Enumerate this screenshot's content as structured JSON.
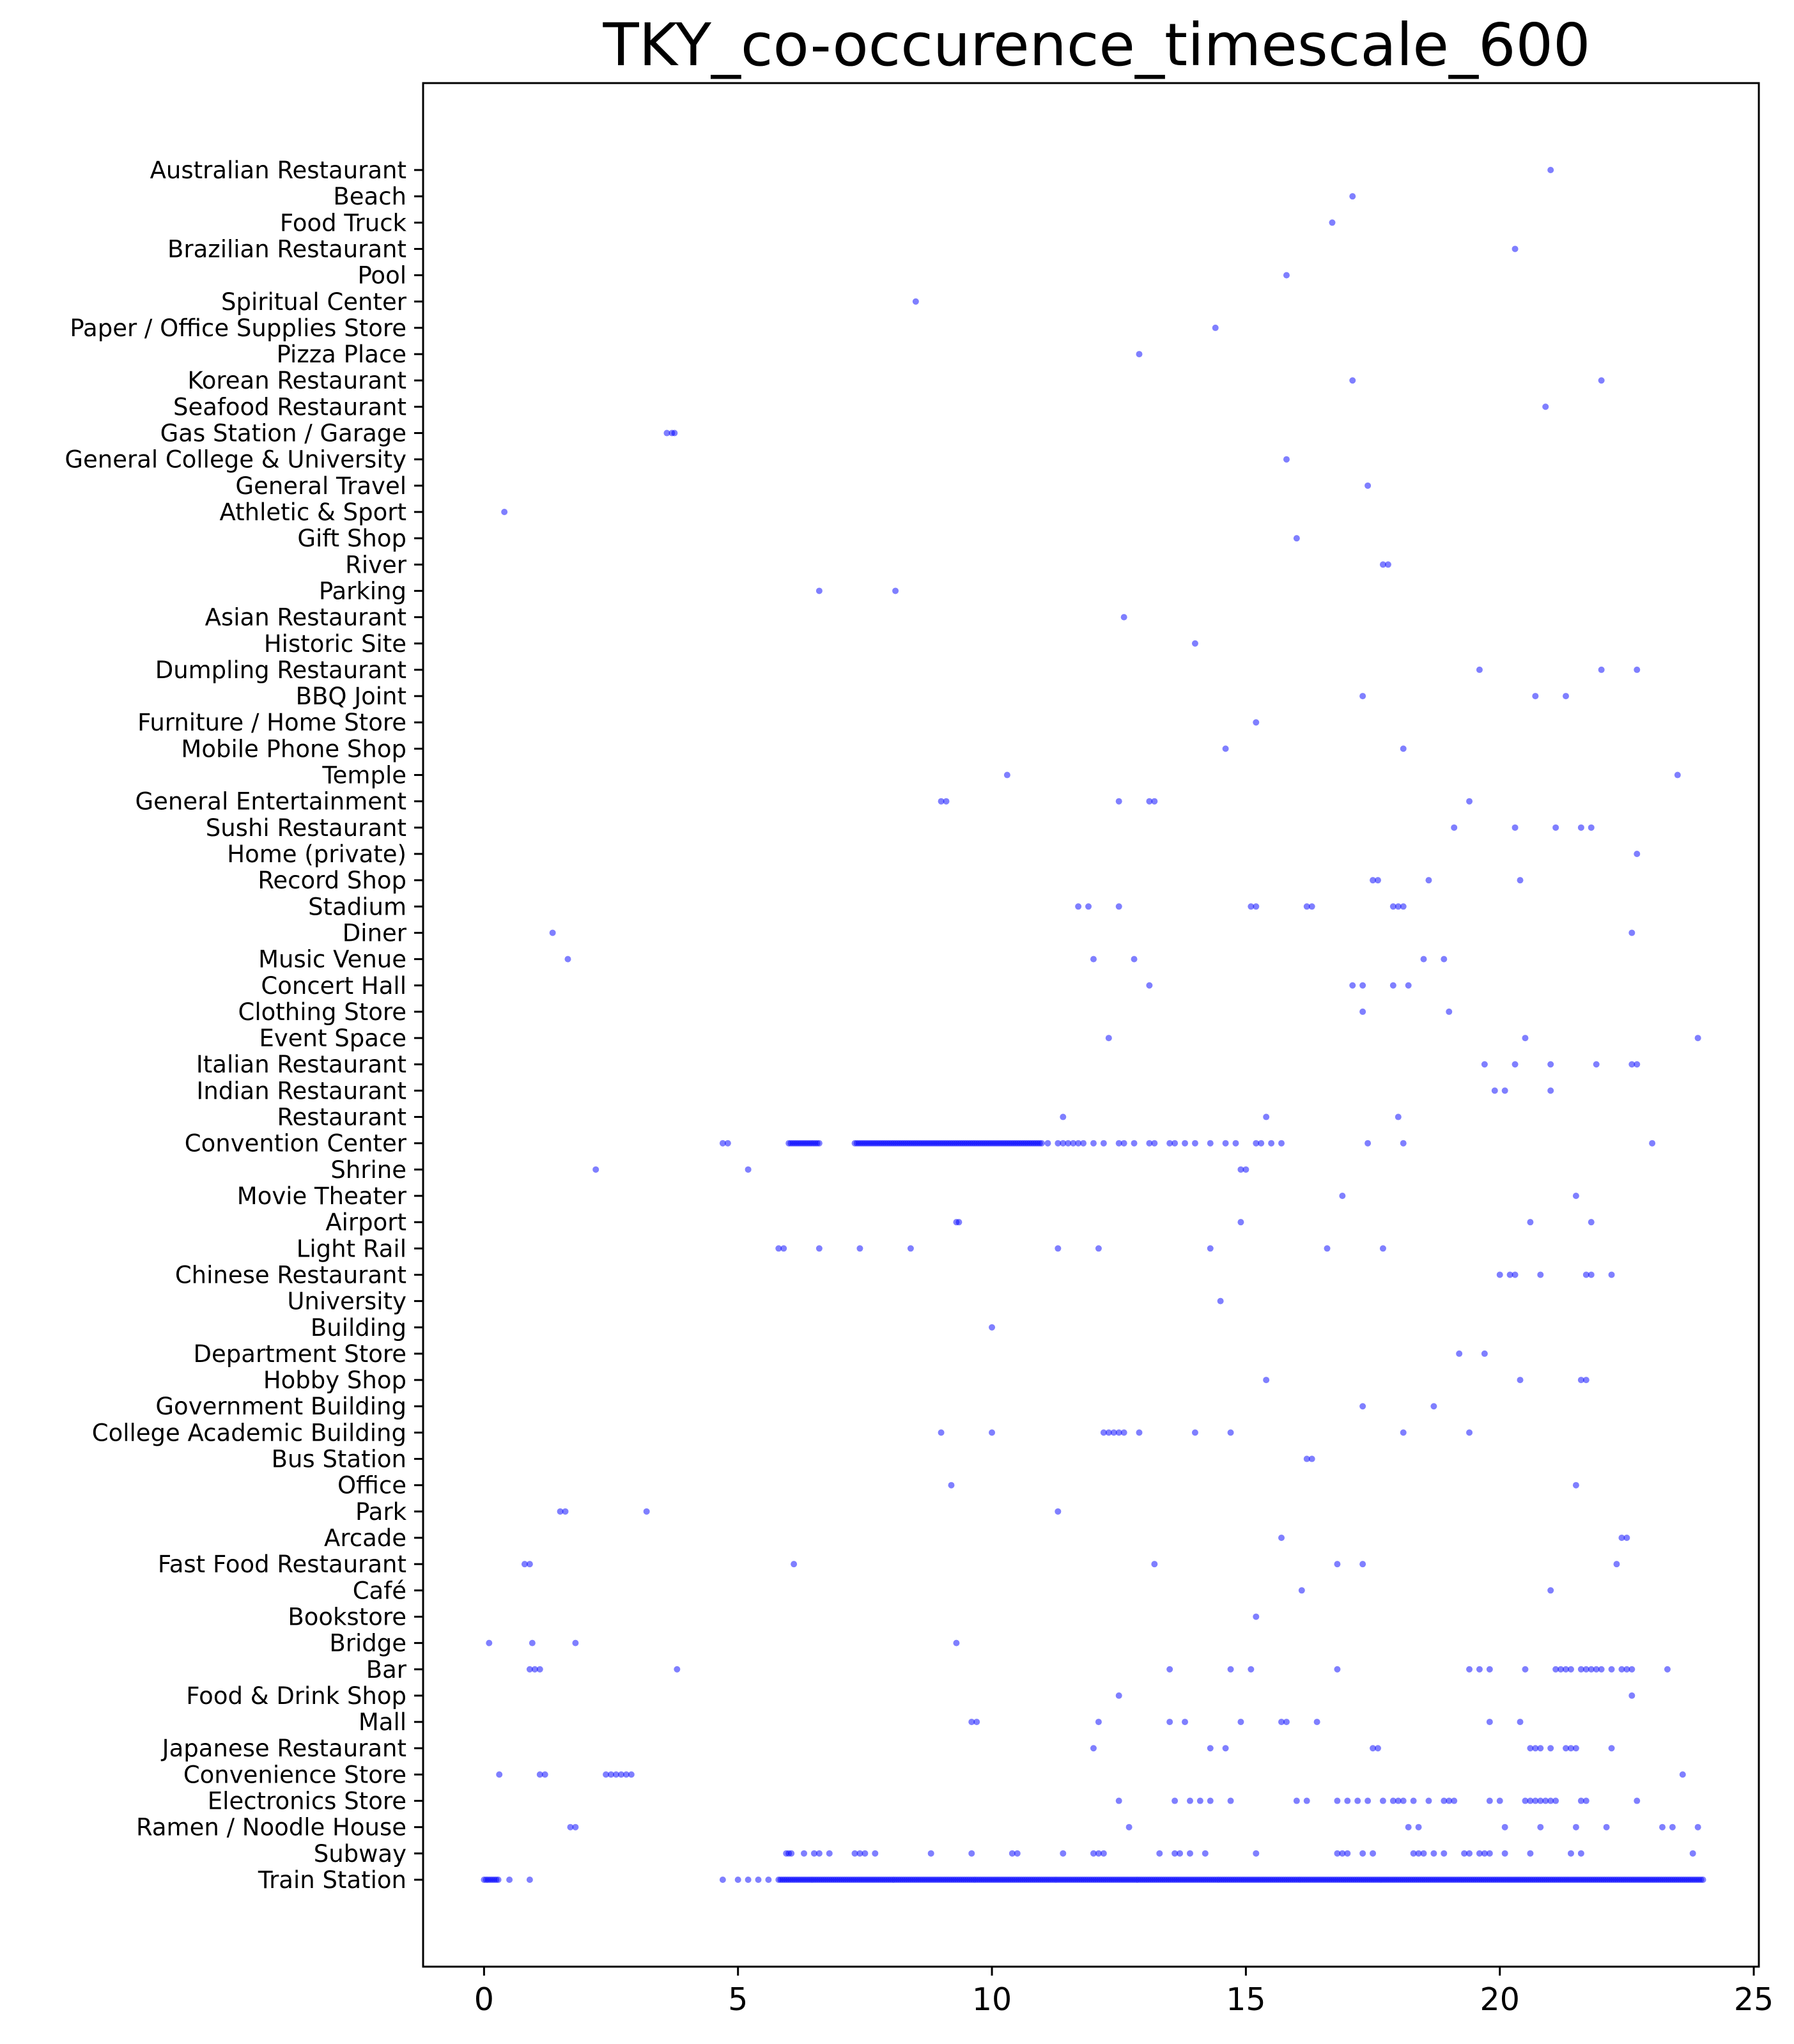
{
  "chart_data": {
    "type": "scatter",
    "title": "TKY_co-occurence_timescale_600",
    "xlabel": "",
    "ylabel": "",
    "xlim": [
      -1.2,
      25.1
    ],
    "x_ticks": [
      0,
      5,
      10,
      15,
      20,
      25
    ],
    "grid": false,
    "marker_color": "#0000ff",
    "marker_opacity": 0.5,
    "categories": [
      "Train Station",
      "Subway",
      "Ramen /  Noodle House",
      "Electronics Store",
      "Convenience Store",
      "Japanese Restaurant",
      "Mall",
      "Food & Drink Shop",
      "Bar",
      "Bridge",
      "Bookstore",
      "Café",
      "Fast Food Restaurant",
      "Arcade",
      "Park",
      "Office",
      "Bus Station",
      "College Academic Building",
      "Government Building",
      "Hobby Shop",
      "Department Store",
      "Building",
      "University",
      "Chinese Restaurant",
      "Light Rail",
      "Airport",
      "Movie Theater",
      "Shrine",
      "Convention Center",
      "Restaurant",
      "Indian Restaurant",
      "Italian Restaurant",
      "Event Space",
      "Clothing Store",
      "Concert Hall",
      "Music Venue",
      "Diner",
      "Stadium",
      "Record Shop",
      "Home (private)",
      "Sushi Restaurant",
      "General Entertainment",
      "Temple",
      "Mobile Phone Shop",
      "Furniture / Home Store",
      "BBQ Joint",
      "Dumpling Restaurant",
      "Historic Site",
      "Asian Restaurant",
      "Parking",
      "River",
      "Gift Shop",
      "Athletic & Sport",
      "General Travel",
      "General College & University",
      "Gas Station / Garage",
      "Seafood Restaurant",
      "Korean Restaurant",
      "Pizza Place",
      "Paper / Office Supplies Store",
      "Spiritual Center",
      "Pool",
      "Brazilian Restaurant",
      "Food Truck",
      "Beach",
      "Australian Restaurant"
    ],
    "points": {
      "Train Station": {
        "dense_ranges": [
          [
            0.0,
            0.3
          ],
          [
            5.8,
            24.0
          ]
        ],
        "x": [
          0.5,
          0.9,
          4.7,
          5.0,
          5.2,
          5.4,
          5.6
        ]
      },
      "Subway": {
        "x": [
          5.95,
          6.0,
          6.05,
          6.3,
          6.5,
          6.6,
          6.8,
          7.3,
          7.4,
          7.5,
          7.7,
          8.8,
          9.6,
          10.4,
          10.5,
          11.4,
          12.0,
          12.1,
          12.2,
          13.3,
          13.6,
          13.7,
          13.9,
          14.2,
          15.2,
          16.8,
          16.9,
          17.0,
          17.3,
          17.5,
          18.3,
          18.4,
          18.5,
          18.7,
          18.9,
          19.3,
          19.4,
          19.6,
          19.7,
          19.8,
          20.1,
          20.6,
          21.4,
          21.6,
          23.8
        ]
      },
      "Ramen /  Noodle House": {
        "x": [
          1.7,
          1.8,
          12.7,
          18.2,
          18.4,
          20.1,
          20.8,
          21.5,
          22.1,
          23.2,
          23.4,
          23.9
        ]
      },
      "Electronics Store": {
        "x": [
          12.5,
          13.6,
          13.9,
          14.1,
          14.3,
          14.7,
          16.0,
          16.2,
          16.8,
          17.0,
          17.2,
          17.4,
          17.7,
          17.9,
          18.0,
          18.1,
          18.3,
          18.6,
          18.9,
          19.0,
          19.1,
          19.8,
          20.0,
          20.5,
          20.6,
          20.7,
          20.8,
          20.9,
          21.0,
          21.1,
          21.6,
          21.7,
          22.7
        ]
      },
      "Convenience Store": {
        "x": [
          0.3,
          1.1,
          1.2,
          2.4,
          2.5,
          2.6,
          2.7,
          2.8,
          2.9,
          23.6
        ]
      },
      "Japanese Restaurant": {
        "x": [
          12.0,
          14.3,
          14.6,
          17.5,
          17.6,
          20.6,
          20.7,
          20.8,
          21.0,
          21.3,
          21.4,
          21.5,
          22.2
        ]
      },
      "Mall": {
        "x": [
          9.6,
          9.7,
          12.1,
          13.5,
          13.8,
          14.9,
          15.7,
          15.8,
          16.4,
          19.8,
          20.4
        ]
      },
      "Food & Drink Shop": {
        "x": [
          12.5,
          22.6
        ]
      },
      "Bar": {
        "x": [
          0.9,
          1.0,
          1.1,
          3.8,
          13.5,
          14.7,
          15.1,
          16.8,
          19.4,
          19.6,
          19.8,
          20.5,
          21.1,
          21.2,
          21.3,
          21.4,
          21.6,
          21.7,
          21.8,
          21.9,
          22.0,
          22.2,
          22.4,
          22.5,
          22.6,
          23.3
        ]
      },
      "Bridge": {
        "x": [
          0.1,
          0.95,
          1.8,
          9.3
        ]
      },
      "Bookstore": {
        "x": [
          15.2
        ]
      },
      "Café": {
        "x": [
          16.1,
          21.0
        ]
      },
      "Fast Food Restaurant": {
        "x": [
          0.8,
          0.9,
          6.1,
          13.2,
          16.8,
          17.3,
          22.3
        ]
      },
      "Arcade": {
        "x": [
          15.7,
          22.4,
          22.5
        ]
      },
      "Park": {
        "x": [
          1.5,
          1.6,
          3.2,
          11.3
        ]
      },
      "Office": {
        "x": [
          9.2,
          21.5
        ]
      },
      "Bus Station": {
        "x": [
          16.2,
          16.3
        ]
      },
      "College Academic Building": {
        "x": [
          9.0,
          10.0,
          12.2,
          12.3,
          12.4,
          12.5,
          12.6,
          12.9,
          14.0,
          14.7,
          18.1,
          19.4
        ]
      },
      "Government Building": {
        "x": [
          17.3,
          18.7
        ]
      },
      "Hobby Shop": {
        "x": [
          15.4,
          20.4,
          21.6,
          21.7
        ]
      },
      "Department Store": {
        "x": [
          19.2,
          19.7
        ]
      },
      "Building": {
        "x": [
          10.0
        ]
      },
      "University": {
        "x": [
          14.5
        ]
      },
      "Chinese Restaurant": {
        "x": [
          20.0,
          20.2,
          20.3,
          20.8,
          21.7,
          21.8,
          22.2
        ]
      },
      "Light Rail": {
        "x": [
          5.8,
          5.9,
          6.6,
          7.4,
          8.4,
          11.3,
          12.1,
          14.3,
          16.6,
          17.7
        ]
      },
      "Airport": {
        "x": [
          9.3,
          9.35,
          14.9,
          20.6,
          21.8
        ]
      },
      "Movie Theater": {
        "x": [
          16.9,
          21.5
        ]
      },
      "Shrine": {
        "x": [
          2.2,
          5.2,
          14.9,
          15.0
        ]
      },
      "Convention Center": {
        "dense_ranges": [
          [
            6.0,
            6.6
          ],
          [
            7.3,
            11.0
          ]
        ],
        "x": [
          4.7,
          4.8,
          11.1,
          11.3,
          11.4,
          11.5,
          11.6,
          11.7,
          11.8,
          12.0,
          12.2,
          12.5,
          12.6,
          12.8,
          13.1,
          13.2,
          13.5,
          13.6,
          13.8,
          14.0,
          14.3,
          14.6,
          14.8,
          15.2,
          15.3,
          15.5,
          15.7,
          17.4,
          18.1,
          23.0
        ]
      },
      "Restaurant": {
        "x": [
          11.4,
          15.4,
          18.0
        ]
      },
      "Indian Restaurant": {
        "x": [
          19.9,
          20.1,
          21.0
        ]
      },
      "Italian Restaurant": {
        "x": [
          19.7,
          20.3,
          21.0,
          21.9,
          22.6,
          22.7
        ]
      },
      "Event Space": {
        "x": [
          12.3,
          20.5,
          23.9
        ]
      },
      "Clothing Store": {
        "x": [
          17.3,
          19.0
        ]
      },
      "Concert Hall": {
        "x": [
          13.1,
          17.1,
          17.3,
          17.9,
          18.2
        ]
      },
      "Music Venue": {
        "x": [
          1.65,
          12.0,
          12.8,
          18.5,
          18.9
        ]
      },
      "Diner": {
        "x": [
          1.35,
          22.6
        ]
      },
      "Stadium": {
        "x": [
          11.7,
          11.9,
          12.5,
          15.1,
          15.2,
          16.2,
          16.3,
          17.9,
          18.0,
          18.1
        ]
      },
      "Record Shop": {
        "x": [
          17.5,
          17.6,
          18.6,
          20.4
        ]
      },
      "Home (private)": {
        "x": [
          22.7
        ]
      },
      "Sushi Restaurant": {
        "x": [
          19.1,
          20.3,
          21.1,
          21.6,
          21.8
        ]
      },
      "General Entertainment": {
        "x": [
          9.0,
          9.1,
          12.5,
          13.1,
          13.2,
          19.4
        ]
      },
      "Temple": {
        "x": [
          10.3,
          23.5
        ]
      },
      "Mobile Phone Shop": {
        "x": [
          14.6,
          18.1
        ]
      },
      "Furniture / Home Store": {
        "x": [
          15.2
        ]
      },
      "BBQ Joint": {
        "x": [
          17.3,
          20.7,
          21.3
        ]
      },
      "Dumpling Restaurant": {
        "x": [
          19.6,
          22.0,
          22.7
        ]
      },
      "Historic Site": {
        "x": [
          14.0
        ]
      },
      "Asian Restaurant": {
        "x": [
          12.6
        ]
      },
      "Parking": {
        "x": [
          6.6,
          8.1
        ]
      },
      "River": {
        "x": [
          17.7,
          17.8
        ]
      },
      "Gift Shop": {
        "x": [
          16.0
        ]
      },
      "Athletic & Sport": {
        "x": [
          0.4
        ]
      },
      "General Travel": {
        "x": [
          17.4
        ]
      },
      "General College & University": {
        "x": [
          15.8
        ]
      },
      "Gas Station / Garage": {
        "x": [
          3.6,
          3.7,
          3.75
        ]
      },
      "Seafood Restaurant": {
        "x": [
          20.9
        ]
      },
      "Korean Restaurant": {
        "x": [
          17.1,
          22.0
        ]
      },
      "Pizza Place": {
        "x": [
          12.9
        ]
      },
      "Paper / Office Supplies Store": {
        "x": [
          14.4
        ]
      },
      "Spiritual Center": {
        "x": [
          8.5
        ]
      },
      "Pool": {
        "x": [
          15.8
        ]
      },
      "Brazilian Restaurant": {
        "x": [
          20.3
        ]
      },
      "Food Truck": {
        "x": [
          16.7
        ]
      },
      "Beach": {
        "x": [
          17.1
        ]
      },
      "Australian Restaurant": {
        "x": [
          21.0
        ]
      }
    }
  }
}
